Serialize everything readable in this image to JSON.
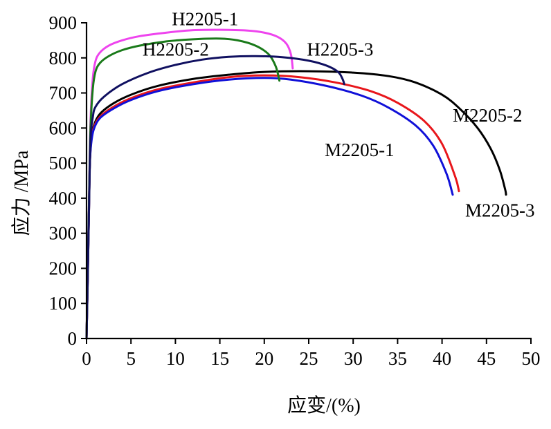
{
  "chart_data": {
    "type": "line",
    "title": "",
    "xlabel": "应变/(%)",
    "ylabel": "应力 /MPa",
    "xlim": [
      0,
      50
    ],
    "ylim": [
      0,
      900
    ],
    "xticks": [
      0,
      5,
      10,
      15,
      20,
      25,
      30,
      35,
      40,
      45,
      50
    ],
    "yticks": [
      0,
      100,
      200,
      300,
      400,
      500,
      600,
      700,
      800,
      900
    ],
    "grid": false,
    "series": [
      {
        "name": "M2205-2",
        "color": "#000000",
        "points": [
          [
            0,
            0
          ],
          [
            0.12,
            150
          ],
          [
            0.25,
            330
          ],
          [
            0.35,
            480
          ],
          [
            0.5,
            560
          ],
          [
            0.8,
            605
          ],
          [
            1.5,
            640
          ],
          [
            3,
            670
          ],
          [
            5,
            695
          ],
          [
            8,
            720
          ],
          [
            12,
            740
          ],
          [
            16,
            752
          ],
          [
            20,
            760
          ],
          [
            25,
            762
          ],
          [
            30,
            758
          ],
          [
            34,
            748
          ],
          [
            37,
            730
          ],
          [
            40,
            695
          ],
          [
            42,
            655
          ],
          [
            44,
            600
          ],
          [
            45.5,
            540
          ],
          [
            46.5,
            480
          ],
          [
            47.1,
            425
          ],
          [
            47.2,
            410
          ]
        ]
      },
      {
        "name": "M2205-1",
        "color": "#e8161b",
        "points": [
          [
            0,
            0
          ],
          [
            0.12,
            150
          ],
          [
            0.25,
            330
          ],
          [
            0.35,
            480
          ],
          [
            0.5,
            555
          ],
          [
            0.8,
            600
          ],
          [
            1.5,
            632
          ],
          [
            3,
            660
          ],
          [
            5,
            685
          ],
          [
            8,
            710
          ],
          [
            12,
            730
          ],
          [
            16,
            745
          ],
          [
            20,
            750
          ],
          [
            24,
            745
          ],
          [
            28,
            730
          ],
          [
            32,
            705
          ],
          [
            35,
            672
          ],
          [
            38,
            620
          ],
          [
            40,
            555
          ],
          [
            41.5,
            460
          ],
          [
            41.9,
            420
          ]
        ]
      },
      {
        "name": "M2205-3",
        "color": "#1010d8",
        "points": [
          [
            0,
            0
          ],
          [
            0.12,
            150
          ],
          [
            0.25,
            330
          ],
          [
            0.35,
            480
          ],
          [
            0.5,
            550
          ],
          [
            0.8,
            595
          ],
          [
            1.5,
            628
          ],
          [
            3,
            655
          ],
          [
            5,
            680
          ],
          [
            8,
            705
          ],
          [
            12,
            725
          ],
          [
            16,
            738
          ],
          [
            20,
            743
          ],
          [
            23,
            738
          ],
          [
            27,
            720
          ],
          [
            31,
            692
          ],
          [
            34,
            658
          ],
          [
            37,
            608
          ],
          [
            39,
            550
          ],
          [
            40.5,
            470
          ],
          [
            41.2,
            410
          ]
        ]
      },
      {
        "name": "H2205-1",
        "color": "#ee44ee",
        "points": [
          [
            0,
            0
          ],
          [
            0.15,
            200
          ],
          [
            0.3,
            420
          ],
          [
            0.45,
            620
          ],
          [
            0.7,
            740
          ],
          [
            1,
            790
          ],
          [
            1.5,
            815
          ],
          [
            2.5,
            835
          ],
          [
            4,
            850
          ],
          [
            6,
            862
          ],
          [
            9,
            872
          ],
          [
            12,
            879
          ],
          [
            15,
            880
          ],
          [
            18,
            878
          ],
          [
            20,
            872
          ],
          [
            21.5,
            860
          ],
          [
            22.5,
            840
          ],
          [
            23,
            810
          ],
          [
            23.2,
            770
          ]
        ]
      },
      {
        "name": "H2205-2",
        "color": "#1a7a1a",
        "points": [
          [
            0,
            0
          ],
          [
            0.15,
            200
          ],
          [
            0.3,
            420
          ],
          [
            0.45,
            600
          ],
          [
            0.7,
            710
          ],
          [
            1,
            760
          ],
          [
            1.5,
            785
          ],
          [
            2.5,
            805
          ],
          [
            4,
            822
          ],
          [
            6,
            835
          ],
          [
            9,
            847
          ],
          [
            12,
            853
          ],
          [
            15,
            855
          ],
          [
            17,
            850
          ],
          [
            19,
            835
          ],
          [
            20.5,
            810
          ],
          [
            21.3,
            775
          ],
          [
            21.7,
            735
          ]
        ]
      },
      {
        "name": "H2205-3",
        "color": "#101060",
        "points": [
          [
            0,
            0
          ],
          [
            0.15,
            200
          ],
          [
            0.3,
            400
          ],
          [
            0.45,
            570
          ],
          [
            0.7,
            630
          ],
          [
            1,
            660
          ],
          [
            2,
            690
          ],
          [
            4,
            725
          ],
          [
            7,
            758
          ],
          [
            10,
            780
          ],
          [
            13,
            795
          ],
          [
            16,
            803
          ],
          [
            19,
            805
          ],
          [
            22,
            802
          ],
          [
            25,
            792
          ],
          [
            27,
            778
          ],
          [
            28.3,
            760
          ],
          [
            28.8,
            740
          ],
          [
            29,
            725
          ]
        ]
      }
    ],
    "annotations": [
      {
        "text": "H2205-1",
        "x": 9.6,
        "y": 893
      },
      {
        "text": "H2205-2",
        "x": 6.3,
        "y": 806
      },
      {
        "text": "H2205-3",
        "x": 24.8,
        "y": 806
      },
      {
        "text": "M2205-2",
        "x": 41.2,
        "y": 618
      },
      {
        "text": "M2205-1",
        "x": 26.8,
        "y": 520
      },
      {
        "text": "M2205-3",
        "x": 42.6,
        "y": 348
      }
    ]
  }
}
